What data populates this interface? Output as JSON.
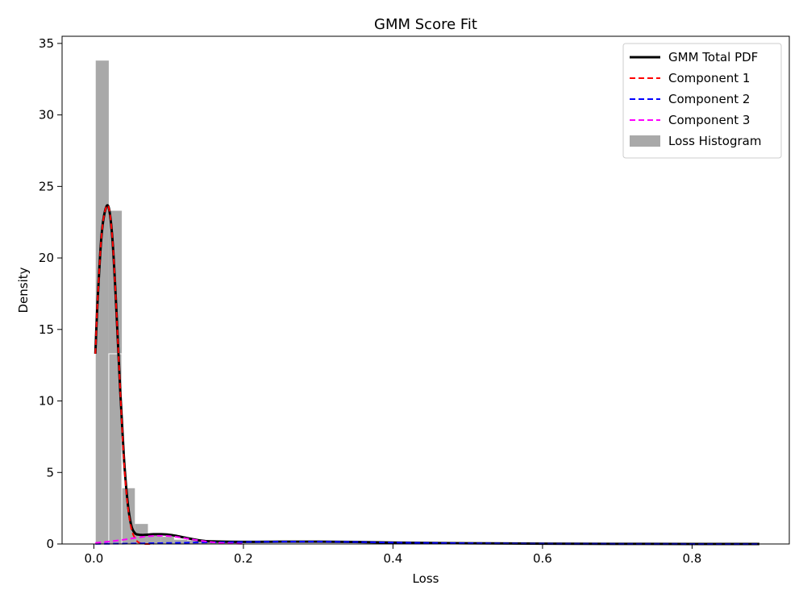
{
  "chart_data": {
    "type": "bar",
    "title": "GMM Score Fit",
    "xlabel": "Loss",
    "ylabel": "Density",
    "xlim": [
      -0.0425,
      0.93
    ],
    "ylim": [
      0,
      35.5
    ],
    "xticks": [
      0.0,
      0.2,
      0.4,
      0.6,
      0.8
    ],
    "xtick_labels": [
      "0.0",
      "0.2",
      "0.4",
      "0.6",
      "0.8"
    ],
    "yticks": [
      0,
      5,
      10,
      15,
      20,
      25,
      30,
      35
    ],
    "ytick_labels": [
      "0",
      "5",
      "10",
      "15",
      "20",
      "25",
      "30",
      "35"
    ],
    "grid": false,
    "legend_position": "upper right",
    "histogram": {
      "name": "Loss Histogram",
      "color": "#a9a9a9",
      "bin_width": 0.01745,
      "bins": [
        {
          "x0": 0.0025,
          "value": 33.8
        },
        {
          "x0": 0.01995,
          "value": 23.3
        },
        {
          "x0": 0.0374,
          "value": 3.9
        },
        {
          "x0": 0.05485,
          "value": 1.4
        },
        {
          "x0": 0.0723,
          "value": 0.6
        },
        {
          "x0": 0.08975,
          "value": 0.5
        },
        {
          "x0": 0.1072,
          "value": 0.3
        },
        {
          "x0": 0.12465,
          "value": 0.25
        },
        {
          "x0": 0.1421,
          "value": 0.2
        },
        {
          "x0": 0.15955,
          "value": 0.15
        },
        {
          "x0": 0.177,
          "value": 0.1
        }
      ],
      "inner_bar": {
        "x0": 0.01995,
        "x1": 0.0374,
        "value": 13.3
      }
    },
    "series": [
      {
        "name": "GMM Total PDF",
        "color": "#000000",
        "style": "solid",
        "x": [
          0.002,
          0.005,
          0.01,
          0.015,
          0.02,
          0.025,
          0.03,
          0.035,
          0.04,
          0.045,
          0.05,
          0.055,
          0.06,
          0.065,
          0.07,
          0.08,
          0.09,
          0.1,
          0.11,
          0.12,
          0.13,
          0.15,
          0.2,
          0.25,
          0.3,
          0.35,
          0.4,
          0.5,
          0.6,
          0.7,
          0.8,
          0.89
        ],
        "y": [
          13.3,
          17.0,
          21.4,
          23.3,
          23.5,
          21.2,
          16.5,
          11.0,
          6.2,
          3.0,
          1.3,
          0.75,
          0.65,
          0.63,
          0.64,
          0.68,
          0.68,
          0.65,
          0.57,
          0.46,
          0.36,
          0.2,
          0.15,
          0.16,
          0.16,
          0.14,
          0.1,
          0.05,
          0.02,
          0.01,
          0.003,
          0.001
        ]
      },
      {
        "name": "Component 1",
        "color": "#ff0000",
        "style": "dashed",
        "x": [
          0.002,
          0.005,
          0.01,
          0.015,
          0.02,
          0.025,
          0.03,
          0.035,
          0.04,
          0.045,
          0.05,
          0.055,
          0.06,
          0.065,
          0.07,
          0.08
        ],
        "y": [
          13.3,
          17.0,
          21.4,
          23.3,
          23.5,
          21.2,
          16.5,
          11.0,
          6.0,
          2.8,
          1.1,
          0.4,
          0.1,
          0.03,
          0.0,
          0.0
        ]
      },
      {
        "name": "Component 2",
        "color": "#0000ff",
        "style": "dashed",
        "x": [
          0.002,
          0.05,
          0.1,
          0.15,
          0.2,
          0.25,
          0.3,
          0.35,
          0.4,
          0.5,
          0.6,
          0.7,
          0.8,
          0.89
        ],
        "y": [
          0.01,
          0.03,
          0.07,
          0.11,
          0.14,
          0.16,
          0.16,
          0.14,
          0.1,
          0.05,
          0.02,
          0.01,
          0.003,
          0.001
        ]
      },
      {
        "name": "Component 3",
        "color": "#ff00ff",
        "style": "dashed",
        "x": [
          0.002,
          0.02,
          0.04,
          0.06,
          0.07,
          0.08,
          0.09,
          0.1,
          0.11,
          0.12,
          0.13,
          0.15,
          0.17,
          0.2
        ],
        "y": [
          0.07,
          0.17,
          0.3,
          0.46,
          0.52,
          0.56,
          0.57,
          0.55,
          0.5,
          0.42,
          0.33,
          0.18,
          0.07,
          0.01
        ]
      }
    ],
    "legend": [
      {
        "label": "GMM Total PDF",
        "kind": "line",
        "color": "#000000",
        "style": "solid"
      },
      {
        "label": "Component 1",
        "kind": "line",
        "color": "#ff0000",
        "style": "dashed"
      },
      {
        "label": "Component 2",
        "kind": "line",
        "color": "#0000ff",
        "style": "dashed"
      },
      {
        "label": "Component 3",
        "kind": "line",
        "color": "#ff00ff",
        "style": "dashed"
      },
      {
        "label": "Loss Histogram",
        "kind": "patch",
        "color": "#a9a9a9",
        "style": "fill"
      }
    ]
  }
}
